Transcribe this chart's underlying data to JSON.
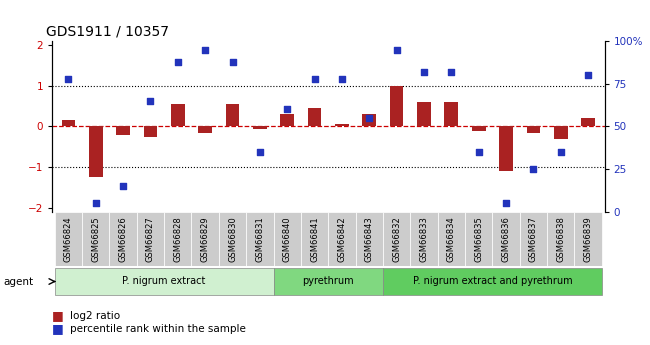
{
  "title": "GDS1911 / 10357",
  "samples": [
    "GSM66824",
    "GSM66825",
    "GSM66826",
    "GSM66827",
    "GSM66828",
    "GSM66829",
    "GSM66830",
    "GSM66831",
    "GSM66840",
    "GSM66841",
    "GSM66842",
    "GSM66843",
    "GSM66832",
    "GSM66833",
    "GSM66834",
    "GSM66835",
    "GSM66836",
    "GSM66837",
    "GSM66838",
    "GSM66839"
  ],
  "log2_ratio": [
    0.15,
    -1.25,
    -0.2,
    -0.25,
    0.55,
    -0.15,
    0.55,
    -0.05,
    0.3,
    0.45,
    0.05,
    0.3,
    1.0,
    0.6,
    0.6,
    -0.1,
    -1.1,
    -0.15,
    -0.3,
    0.2
  ],
  "percentile_vals": [
    78,
    5,
    15,
    65,
    88,
    95,
    88,
    35,
    60,
    78,
    78,
    55,
    95,
    82,
    82,
    35,
    5,
    25,
    35,
    80
  ],
  "bar_color": "#aa2222",
  "dot_color": "#2233bb",
  "hline_color": "#cc0000",
  "ylim": [
    -2.1,
    2.1
  ],
  "y2lim": [
    0,
    100
  ],
  "yticks": [
    -2,
    -1,
    0,
    1,
    2
  ],
  "y2ticks": [
    0,
    25,
    50,
    75,
    100
  ],
  "ylabel_color_left": "#cc0000",
  "ylabel_color_right": "#2233bb",
  "groups": [
    {
      "label": "P. nigrum extract",
      "start": 0,
      "end": 8,
      "color": "#d0f0d0"
    },
    {
      "label": "pyrethrum",
      "start": 8,
      "end": 12,
      "color": "#80d880"
    },
    {
      "label": "P. nigrum extract and pyrethrum",
      "start": 12,
      "end": 20,
      "color": "#60cc60"
    }
  ],
  "legend_items": [
    {
      "label": "log2 ratio",
      "color": "#aa2222"
    },
    {
      "label": "percentile rank within the sample",
      "color": "#2233bb"
    }
  ],
  "bar_width": 0.5,
  "xtick_bg": "#cccccc"
}
